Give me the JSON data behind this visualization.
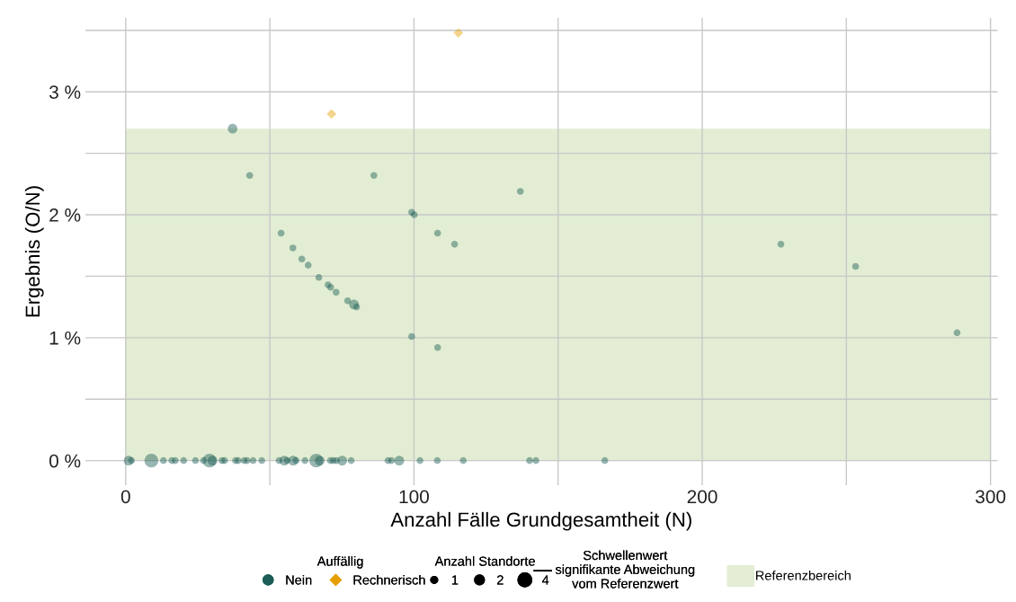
{
  "chart_data": {
    "type": "bubble",
    "xlabel": "Anzahl Fälle Grundgesamtheit (N)",
    "ylabel": "Ergebnis (O/N)",
    "legend_title": "Auffällig",
    "annotations": [
      "Anzahl Standorte",
      "Schwellenwert\nsignifikante Abweichung\nvom Referenzwert"
    ],
    "size_legend": [
      1,
      2,
      4
    ],
    "series": [
      {
        "name": "Nein",
        "color": "#1b5e55",
        "marker": "circle",
        "x": [
          37.1,
          43.0,
          86.1,
          136.9,
          99.2,
          100.1,
          53.9,
          108.2,
          114.1,
          58.0,
          61.1,
          63.3,
          67.0,
          70.2,
          71.1,
          73.0,
          77.0,
          79.2,
          80.1,
          99.2,
          108.2,
          227.3,
          253.2,
          288.4,
          1.0,
          2.0,
          8.9,
          13.1,
          16.0,
          17.2,
          20.1,
          24.2,
          27.0,
          29.1,
          30.1,
          33.4,
          34.3,
          38.1,
          39.0,
          41.1,
          42.1,
          44.2,
          47.2,
          53.2,
          55.0,
          56.0,
          58.1,
          59.1,
          62.2,
          66.1,
          67.3,
          71.0,
          72.0,
          73.1,
          75.1,
          78.2,
          91.0,
          92.2,
          94.9,
          102.1,
          108.1,
          117.1,
          140.1,
          142.3,
          166.2
        ],
        "values": [
          2.7,
          2.32,
          2.32,
          2.19,
          2.02,
          2.0,
          1.85,
          1.85,
          1.76,
          1.73,
          1.64,
          1.59,
          1.49,
          1.43,
          1.41,
          1.37,
          1.3,
          1.27,
          1.25,
          1.01,
          0.92,
          1.76,
          1.58,
          1.04,
          0,
          0,
          0,
          0,
          0,
          0,
          0,
          0,
          0,
          0,
          0,
          0,
          0,
          0,
          0,
          0,
          0,
          0,
          0,
          0,
          0,
          0,
          0,
          0,
          0,
          0,
          0,
          0,
          0,
          0,
          0,
          0,
          0,
          0,
          0,
          0,
          0,
          0,
          0,
          0,
          0
        ],
        "sizes": [
          2,
          1,
          1,
          1,
          1,
          1,
          1,
          1,
          1,
          1,
          1,
          1,
          1,
          1,
          1,
          1,
          1,
          2,
          1,
          1,
          1,
          1,
          1,
          1,
          2,
          1,
          4,
          1,
          1,
          1,
          1,
          1,
          1,
          4,
          2,
          1,
          1,
          1,
          1,
          1,
          1,
          1,
          1,
          1,
          2,
          1,
          2,
          1,
          1,
          4,
          2,
          1,
          1,
          1,
          2,
          1,
          1,
          1,
          2,
          1,
          1,
          1,
          1,
          1,
          1
        ]
      },
      {
        "name": "Rechnerisch",
        "color": "#e69f00",
        "marker": "diamond",
        "x": [
          71.4,
          115.4
        ],
        "values": [
          2.82,
          3.48
        ],
        "sizes": [
          1,
          1
        ]
      }
    ],
    "bands": [
      {
        "axis": "y",
        "from": 0,
        "to": 2.7,
        "label": "Referenzbereich",
        "color": "#e2edd3"
      }
    ],
    "xlim": [
      -14,
      302.5
    ],
    "ylim": [
      -0.2,
      3.6
    ],
    "xticks": [
      0,
      {
        "value": 50,
        "label": null
      },
      100,
      {
        "value": 150,
        "label": null
      },
      200,
      {
        "value": 250,
        "label": null
      },
      300
    ],
    "yticks": [
      {
        "value": 0,
        "label": "0 %"
      },
      {
        "value": 0.5,
        "label": null
      },
      {
        "value": 1,
        "label": "1 %"
      },
      {
        "value": 1.5,
        "label": null
      },
      {
        "value": 2,
        "label": "2 %"
      },
      {
        "value": 2.5,
        "label": null
      },
      {
        "value": 3,
        "label": "3 %"
      },
      {
        "value": 3.5,
        "label": null
      }
    ],
    "grid": true,
    "legend": "bottom"
  }
}
